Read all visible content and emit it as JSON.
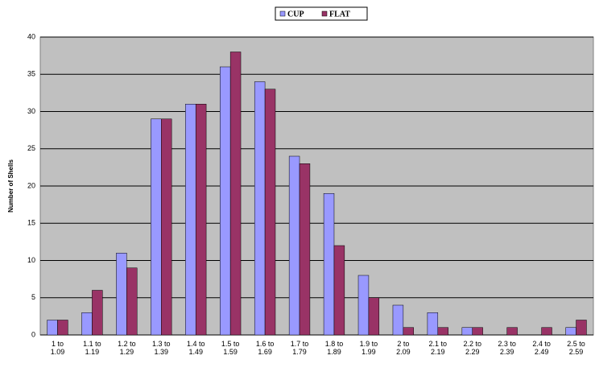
{
  "chart_data": {
    "type": "bar",
    "y_label": "Number of Shells",
    "categories": [
      "1 to 1.09",
      "1.1 to 1.19",
      "1.2 to 1.29",
      "1.3 to 1.39",
      "1.4 to 1.49",
      "1.5 to 1.59",
      "1.6 to 1.69",
      "1.7 to 1.79",
      "1.8 to 1.89",
      "1.9 to 1.99",
      "2 to 2.09",
      "2.1 to 2.19",
      "2.2 to 2.29",
      "2.3 to 2.39",
      "2.4 to 2.49",
      "2.5 to 2.59"
    ],
    "series": [
      {
        "name": "CUP",
        "color": "#9999ff",
        "values": [
          2,
          3,
          11,
          29,
          31,
          36,
          34,
          24,
          19,
          8,
          4,
          3,
          1,
          0,
          0,
          1
        ]
      },
      {
        "name": "FLAT",
        "color": "#993366",
        "values": [
          2,
          6,
          9,
          29,
          31,
          38,
          33,
          23,
          12,
          5,
          1,
          1,
          1,
          1,
          1,
          2
        ]
      }
    ],
    "ylim": [
      0,
      40
    ],
    "yticks": [
      0,
      5,
      10,
      15,
      20,
      25,
      30,
      35,
      40
    ],
    "grid": true,
    "legend": "top"
  }
}
